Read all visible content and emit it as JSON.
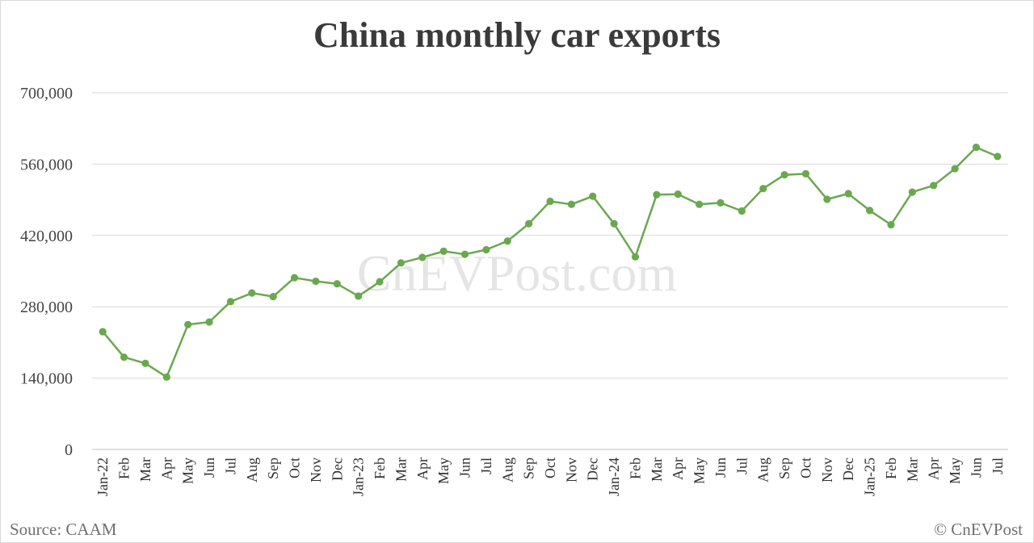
{
  "chart_data": {
    "type": "line",
    "title": "China monthly car exports",
    "xlabel": "",
    "ylabel": "",
    "ylim": [
      0,
      700000
    ],
    "yticks": [
      0,
      140000,
      280000,
      420000,
      560000,
      700000
    ],
    "ytick_labels": [
      "0",
      "140,000",
      "280,000",
      "420,000",
      "560,000",
      "700,000"
    ],
    "grid": true,
    "legend": "none",
    "line_color": "#6aa84f",
    "categories": [
      "Jan-22",
      "Feb",
      "Mar",
      "Apr",
      "May",
      "Jun",
      "Jul",
      "Aug",
      "Sep",
      "Oct",
      "Nov",
      "Dec",
      "Jan-23",
      "Feb",
      "Mar",
      "Apr",
      "May",
      "Jun",
      "Jul",
      "Aug",
      "Sep",
      "Oct",
      "Nov",
      "Dec",
      "Jan-24",
      "Feb",
      "Mar",
      "Apr",
      "May",
      "Jun",
      "Jul",
      "Aug",
      "Sep",
      "Oct",
      "Nov",
      "Dec",
      "Jan-25",
      "Feb",
      "Mar",
      "Apr",
      "May",
      "Jun",
      "Jul"
    ],
    "series": [
      {
        "values": [
          231000,
          181000,
          169000,
          142000,
          245000,
          250000,
          290000,
          307000,
          300000,
          337000,
          330000,
          325000,
          301000,
          329000,
          366000,
          377000,
          389000,
          383000,
          392000,
          409000,
          443000,
          487000,
          481000,
          497000,
          443000,
          378000,
          500000,
          501000,
          481000,
          484000,
          468000,
          512000,
          539000,
          541000,
          491000,
          502000,
          469000,
          441000,
          505000,
          518000,
          551000,
          593000,
          575000
        ]
      }
    ]
  },
  "footer": {
    "source": "Source: CAAM",
    "copyright": "© CnEVPost"
  },
  "watermark": "CnEVPost.com"
}
